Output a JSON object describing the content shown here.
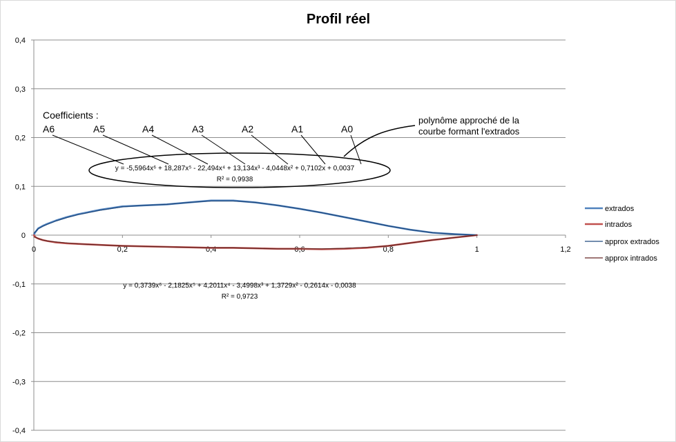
{
  "chart_data": {
    "type": "scatter",
    "title": "Profil réel",
    "xlabel": "",
    "ylabel": "",
    "xlim": [
      0,
      1.2
    ],
    "ylim": [
      -0.4,
      0.4
    ],
    "xticks": [
      0,
      0.2,
      0.4,
      0.6,
      0.8,
      1,
      1.2
    ],
    "yticks": [
      -0.4,
      -0.3,
      -0.2,
      -0.1,
      0,
      0.1,
      0.2,
      0.3,
      0.4
    ],
    "xtick_labels": [
      "0",
      "0,2",
      "0,4",
      "0,6",
      "0,8",
      "1",
      "1,2"
    ],
    "ytick_labels": [
      "-0,4",
      "-0,3",
      "-0,2",
      "-0,1",
      "0",
      "0,1",
      "0,2",
      "0,3",
      "0,4"
    ],
    "grid": "horizontal",
    "legend_position": "right",
    "series": [
      {
        "name": "extrados",
        "color": "#4f81bd",
        "x": [
          0,
          0.0025,
          0.005,
          0.01,
          0.02,
          0.03,
          0.05,
          0.075,
          0.1,
          0.15,
          0.2,
          0.25,
          0.3,
          0.35,
          0.4,
          0.45,
          0.5,
          0.55,
          0.6,
          0.65,
          0.7,
          0.75,
          0.8,
          0.85,
          0.9,
          0.95,
          1
        ],
        "y": [
          0,
          0.005,
          0.008,
          0.014,
          0.019,
          0.023,
          0.03,
          0.037,
          0.043,
          0.052,
          0.059,
          0.061,
          0.063,
          0.067,
          0.071,
          0.071,
          0.067,
          0.061,
          0.054,
          0.046,
          0.037,
          0.028,
          0.019,
          0.011,
          0.005,
          0.002,
          0
        ]
      },
      {
        "name": "intrados",
        "color": "#c0504d",
        "x": [
          0,
          0.0025,
          0.005,
          0.01,
          0.02,
          0.03,
          0.05,
          0.075,
          0.1,
          0.15,
          0.2,
          0.25,
          0.3,
          0.35,
          0.4,
          0.45,
          0.5,
          0.55,
          0.6,
          0.65,
          0.7,
          0.75,
          0.8,
          0.85,
          0.9,
          0.95,
          1
        ],
        "y": [
          0,
          -0.003,
          -0.005,
          -0.007,
          -0.01,
          -0.012,
          -0.015,
          -0.017,
          -0.018,
          -0.02,
          -0.022,
          -0.023,
          -0.024,
          -0.025,
          -0.026,
          -0.026,
          -0.027,
          -0.028,
          -0.028,
          -0.029,
          -0.028,
          -0.026,
          -0.022,
          -0.016,
          -0.01,
          -0.005,
          0
        ]
      },
      {
        "name": "approx extrados",
        "color": "#1f497d",
        "x": [
          0,
          0.0025,
          0.005,
          0.01,
          0.02,
          0.03,
          0.05,
          0.075,
          0.1,
          0.15,
          0.2,
          0.25,
          0.3,
          0.35,
          0.4,
          0.45,
          0.5,
          0.55,
          0.6,
          0.65,
          0.7,
          0.75,
          0.8,
          0.85,
          0.9,
          0.95,
          1
        ],
        "y": [
          0.004,
          0.006,
          0.008,
          0.013,
          0.018,
          0.022,
          0.029,
          0.036,
          0.042,
          0.051,
          0.058,
          0.061,
          0.063,
          0.067,
          0.07,
          0.07,
          0.067,
          0.061,
          0.054,
          0.046,
          0.037,
          0.028,
          0.019,
          0.011,
          0.005,
          0.002,
          0
        ]
      },
      {
        "name": "approx intrados",
        "color": "#632523",
        "x": [
          0,
          0.0025,
          0.005,
          0.01,
          0.02,
          0.03,
          0.05,
          0.075,
          0.1,
          0.15,
          0.2,
          0.25,
          0.3,
          0.35,
          0.4,
          0.45,
          0.5,
          0.55,
          0.6,
          0.65,
          0.7,
          0.75,
          0.8,
          0.85,
          0.9,
          0.95,
          1
        ],
        "y": [
          -0.004,
          -0.004,
          -0.005,
          -0.007,
          -0.01,
          -0.012,
          -0.014,
          -0.016,
          -0.018,
          -0.02,
          -0.022,
          -0.023,
          -0.024,
          -0.025,
          -0.026,
          -0.026,
          -0.027,
          -0.028,
          -0.028,
          -0.028,
          -0.027,
          -0.025,
          -0.022,
          -0.016,
          -0.01,
          -0.005,
          0
        ]
      }
    ],
    "trendline_equations": [
      {
        "series": "approx extrados",
        "equation": "y = -5,5964x⁶ + 18,287x⁵ - 22,494x⁴ + 13,134x³ - 4,0448x² + 0,7102x + 0,0037",
        "r2": "R² = 0,9938"
      },
      {
        "series": "approx intrados",
        "equation": "y = 0,3739x⁶ - 2,1825x⁵ + 4,2011x⁴ - 3,4998x³ + 1,3729x² - 0,2614x - 0,0038",
        "r2": "R² = 0,9723"
      }
    ],
    "annotations": {
      "coefficients_label": "Coefficients :",
      "coefficient_names": [
        "A6",
        "A5",
        "A4",
        "A3",
        "A2",
        "A1",
        "A0"
      ],
      "polynomial_note_line1": "polynôme approché de la",
      "polynomial_note_line2": "courbe formant l'extrados"
    }
  }
}
